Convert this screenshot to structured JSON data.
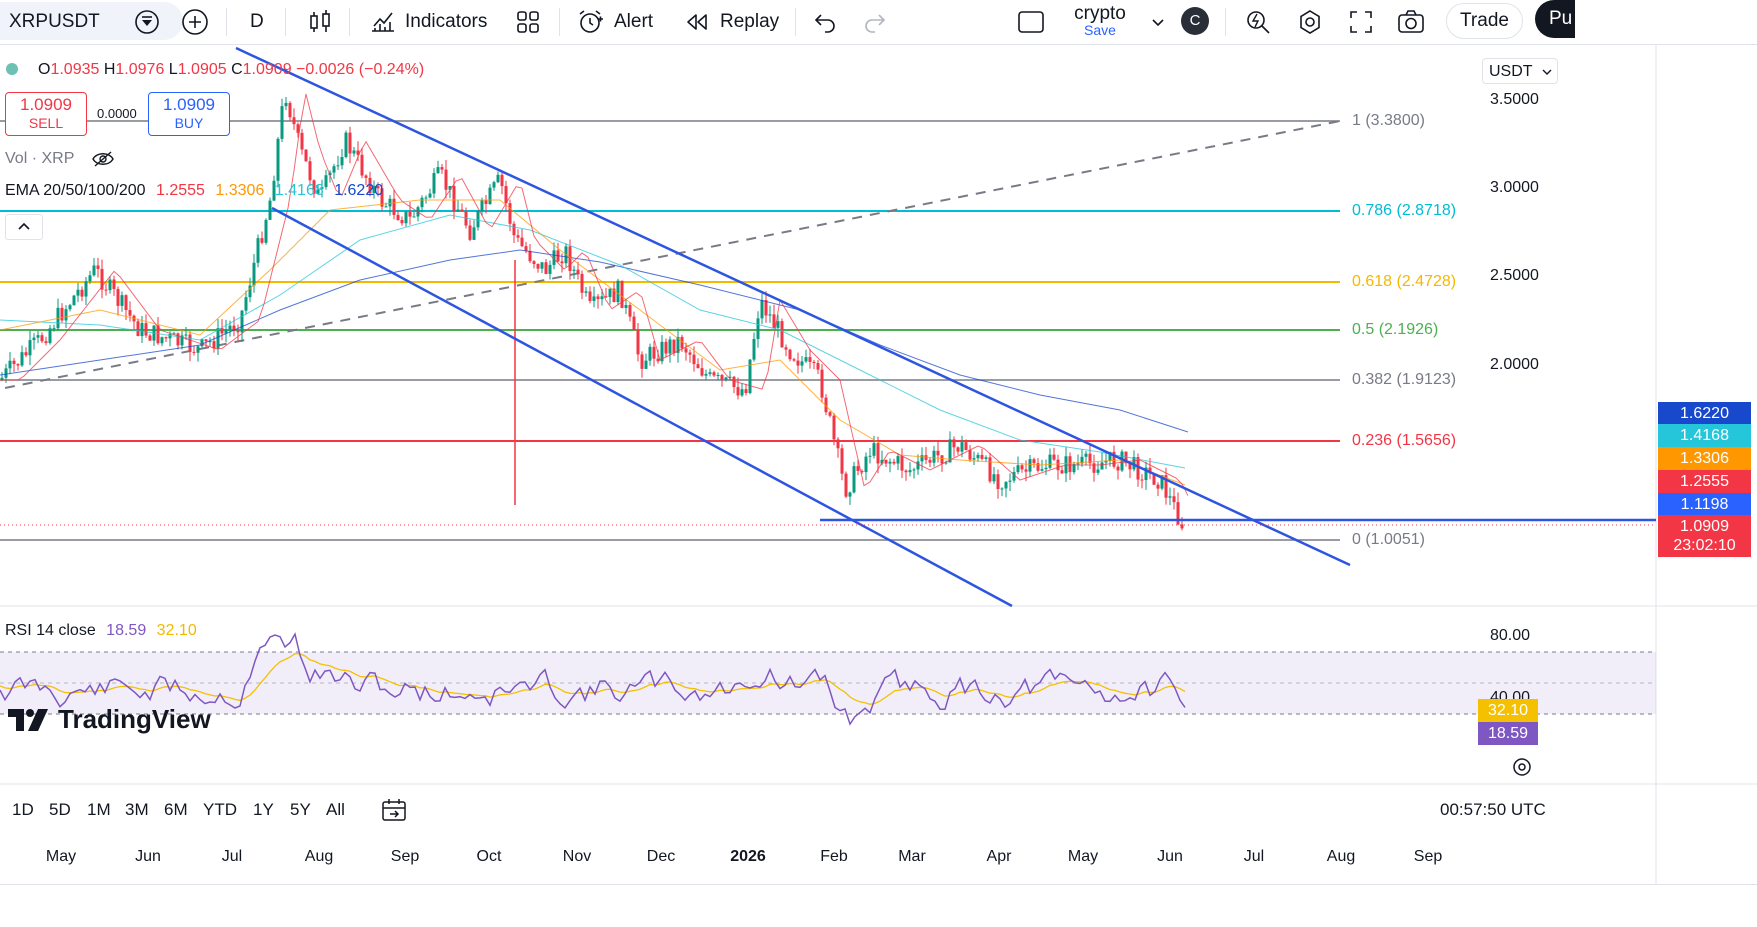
{
  "toolbar": {
    "symbol": "XRPUSDT",
    "interval": "D",
    "indicators_label": "Indicators",
    "alert_label": "Alert",
    "replay_label": "Replay",
    "layout_name": "crypto",
    "layout_sub": "Save",
    "avatar_letter": "C",
    "trade_label": "Trade",
    "publish_label": "Pu"
  },
  "legend": {
    "ohlc_o_label": "O",
    "ohlc_o": "1.0935",
    "ohlc_h_label": "H",
    "ohlc_h": "1.0976",
    "ohlc_l_label": "L",
    "ohlc_l": "1.0905",
    "ohlc_c_label": "C",
    "ohlc_c": "1.0909",
    "change": "−0.0026 (−0.24%)",
    "sell_price": "1.0909",
    "sell_label": "SELL",
    "spread": "0.0000",
    "buy_price": "1.0909",
    "buy_label": "BUY",
    "vol_label": "Vol · XRP",
    "ema_label": "EMA 20/50/100/200",
    "ema20": "1.2555",
    "ema50": "1.3306",
    "ema100": "1.4168",
    "ema200": "1.6220",
    "rsi_label": "RSI 14 close",
    "rsi_value": "18.59",
    "rsi_ma": "32.10"
  },
  "currency": "USDT",
  "price_axis": [
    "3.5000",
    "3.0000",
    "2.5000",
    "2.0000"
  ],
  "fib_levels": [
    {
      "label": "1 (3.3800)",
      "color": "#787b86"
    },
    {
      "label": "0.786 (2.8718)",
      "color": "#00bcd4"
    },
    {
      "label": "0.618 (2.4728)",
      "color": "#f5b800"
    },
    {
      "label": "0.5 (2.1926)",
      "color": "#4caf50"
    },
    {
      "label": "0.382 (1.9123)",
      "color": "#787b86"
    },
    {
      "label": "0.236 (1.5656)",
      "color": "#f23645"
    },
    {
      "label": "0 (1.0051)",
      "color": "#787b86"
    }
  ],
  "price_tags": [
    {
      "value": "1.6220",
      "color": "#1848cc"
    },
    {
      "value": "1.4168",
      "color": "#26c6da"
    },
    {
      "value": "1.3306",
      "color": "#ff9800"
    },
    {
      "value": "1.2555",
      "color": "#f23645"
    },
    {
      "value": "1.1198",
      "color": "#2962ff"
    },
    {
      "value": "1.0909",
      "color": "#f23645"
    },
    {
      "value": "23:02:10",
      "color": "#f23645"
    }
  ],
  "rsi_axis": [
    "80.00",
    "40.00"
  ],
  "rsi_tags": [
    {
      "value": "32.10",
      "color": "#f5c000"
    },
    {
      "value": "18.59",
      "color": "#7e57c2"
    }
  ],
  "time_axis": [
    "May",
    "Jun",
    "Jul",
    "Aug",
    "Sep",
    "Oct",
    "Nov",
    "Dec",
    "2026",
    "Feb",
    "Mar",
    "Apr",
    "May",
    "Jun",
    "Jul",
    "Aug",
    "Sep"
  ],
  "watermark": "TradingView",
  "ranges": [
    "1D",
    "5D",
    "1M",
    "3M",
    "6M",
    "YTD",
    "1Y",
    "5Y",
    "All"
  ],
  "clock": "00:57:50 UTC",
  "colors": {
    "accent": "#2962ff",
    "down": "#f23645",
    "up": "#089981",
    "channel": "#2e55e0"
  }
}
